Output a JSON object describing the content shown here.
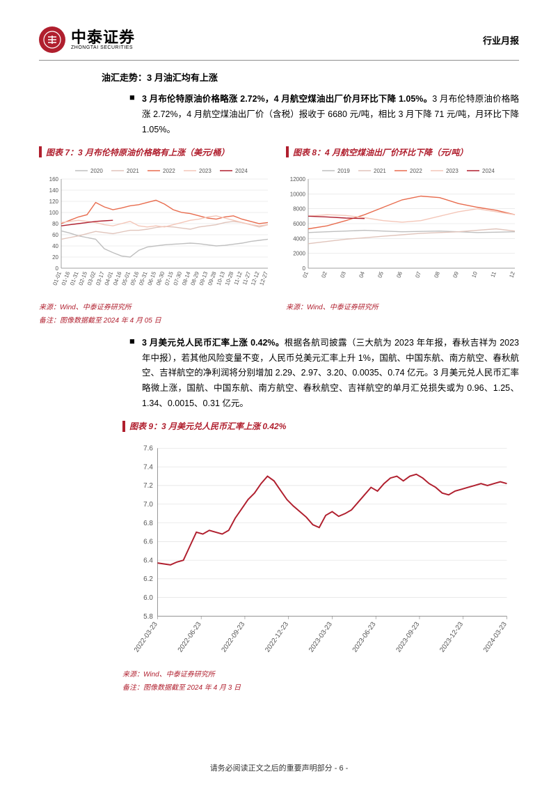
{
  "header": {
    "logo_cn": "中泰证券",
    "logo_en": "ZHONGTAI SECURITIES",
    "right_label": "行业月报"
  },
  "section_title": "油汇走势：3 月油汇均有上涨",
  "bullet1": {
    "bold": "3 月布伦特原油价格略涨 2.72%，4 月航空煤油出厂价月环比下降 1.05%。",
    "rest": "3 月布伦特原油价格略涨 2.72%，4 月航空煤油出厂价（含税）报收于 6680 元/吨，相比 3 月下降 71 元/吨，月环比下降 1.05%。"
  },
  "chart7": {
    "title": "图表 7：3 月布伦特原油价格略有上涨（美元/桶）",
    "type": "line",
    "legend": [
      "2020",
      "2021",
      "2022",
      "2023",
      "2024"
    ],
    "legend_colors": [
      "#bfbfbf",
      "#e0c4bb",
      "#e86c4e",
      "#f4c6b8",
      "#b01f2e"
    ],
    "y_min": 0,
    "y_max": 160,
    "y_step": 20,
    "x_labels": [
      "01-01",
      "01-16",
      "01-31",
      "02-15",
      "03-02",
      "03-17",
      "04-01",
      "04-16",
      "05-01",
      "05-16",
      "05-31",
      "06-15",
      "06-30",
      "07-15",
      "07-30",
      "08-14",
      "08-29",
      "09-13",
      "09-28",
      "10-13",
      "10-28",
      "11-12",
      "11-27",
      "12-12",
      "12-27"
    ],
    "series": {
      "2020": [
        67,
        63,
        58,
        55,
        52,
        35,
        28,
        22,
        20,
        32,
        38,
        40,
        42,
        43,
        44,
        45,
        44,
        42,
        40,
        41,
        43,
        45,
        48,
        50,
        52
      ],
      "2021": [
        52,
        55,
        58,
        62,
        66,
        64,
        62,
        65,
        68,
        68,
        70,
        73,
        75,
        74,
        72,
        70,
        74,
        76,
        78,
        82,
        84,
        82,
        78,
        74,
        78
      ],
      "2022": [
        80,
        86,
        92,
        96,
        118,
        110,
        105,
        108,
        112,
        114,
        118,
        122,
        115,
        105,
        100,
        98,
        94,
        90,
        88,
        92,
        94,
        88,
        84,
        80,
        82
      ],
      "2023": [
        82,
        84,
        86,
        84,
        82,
        78,
        76,
        80,
        84,
        76,
        74,
        76,
        74,
        78,
        82,
        86,
        88,
        92,
        94,
        90,
        86,
        82,
        78,
        76,
        78
      ],
      "2024": [
        76,
        78,
        80,
        82,
        84,
        85,
        86,
        0,
        0,
        0,
        0,
        0,
        0,
        0,
        0,
        0,
        0,
        0,
        0,
        0,
        0,
        0,
        0,
        0,
        0
      ]
    },
    "source": "来源：Wind、中泰证券研究所",
    "note": "备注：图像数据截至 2024 年 4 月 05 日",
    "grid_color": "#d9d9d9",
    "axis_color": "#888888",
    "font_size": 8
  },
  "chart8": {
    "title": "图表 8：4 月航空煤油出厂价环比下降（元/吨）",
    "type": "line",
    "legend": [
      "2019",
      "2021",
      "2022",
      "2023",
      "2024"
    ],
    "legend_colors": [
      "#bfbfbf",
      "#e0c4bb",
      "#e86c4e",
      "#f4c6b8",
      "#b01f2e"
    ],
    "y_min": 0,
    "y_max": 12000,
    "y_step": 2000,
    "x_labels": [
      "01",
      "02",
      "03",
      "04",
      "05",
      "06",
      "07",
      "08",
      "09",
      "10",
      "11",
      "12"
    ],
    "series": {
      "2019": [
        4800,
        4900,
        5000,
        5100,
        5000,
        4900,
        4950,
        5000,
        4900,
        4800,
        4850,
        4900
      ],
      "2021": [
        3300,
        3600,
        3900,
        4100,
        4300,
        4500,
        4700,
        4800,
        4900,
        5100,
        5300,
        5000
      ],
      "2022": [
        5300,
        5700,
        6400,
        7200,
        8200,
        9200,
        9700,
        9500,
        8700,
        8200,
        7800,
        7200
      ],
      "2023": [
        7000,
        7200,
        7100,
        6800,
        6400,
        6200,
        6400,
        7000,
        7600,
        8000,
        7600,
        7200
      ],
      "2024": [
        7000,
        6900,
        6751,
        6680,
        0,
        0,
        0,
        0,
        0,
        0,
        0,
        0
      ]
    },
    "source": "来源：Wind、中泰证券研究所",
    "grid_color": "#d9d9d9",
    "axis_color": "#888888",
    "font_size": 8
  },
  "bullet2": {
    "bold": "3 月美元兑人民币汇率上涨 0.42%。",
    "rest": "根据各航司披露（三大航为 2023 年年报，春秋吉祥为 2023 年中报），若其他风险变量不变，人民币兑美元汇率上升 1%，国航、中国东航、南方航空、春秋航空、吉祥航空的净利润将分别增加 2.29、2.97、3.20、0.0035、0.74 亿元。3 月美元兑人民币汇率略微上涨，国航、中国东航、南方航空、春秋航空、吉祥航空的单月汇兑损失或为 0.96、1.25、1.34、0.0015、0.31 亿元。"
  },
  "chart9": {
    "title": "图表 9：3 月美元兑人民币汇率上涨 0.42%",
    "type": "line",
    "color": "#b01f2e",
    "y_min": 5.8,
    "y_max": 7.6,
    "y_step": 0.2,
    "x_labels": [
      "2022-03-23",
      "2022-06-23",
      "2022-09-23",
      "2022-12-23",
      "2023-03-23",
      "2023-06-23",
      "2023-09-23",
      "2023-12-23",
      "2024-03-23"
    ],
    "series": [
      6.37,
      6.36,
      6.35,
      6.38,
      6.4,
      6.55,
      6.7,
      6.68,
      6.72,
      6.7,
      6.68,
      6.72,
      6.85,
      6.95,
      7.05,
      7.12,
      7.22,
      7.3,
      7.25,
      7.15,
      7.05,
      6.98,
      6.92,
      6.86,
      6.78,
      6.75,
      6.88,
      6.92,
      6.87,
      6.9,
      6.94,
      7.02,
      7.1,
      7.18,
      7.14,
      7.22,
      7.28,
      7.3,
      7.25,
      7.3,
      7.32,
      7.28,
      7.22,
      7.18,
      7.12,
      7.1,
      7.14,
      7.16,
      7.18,
      7.2,
      7.22,
      7.2,
      7.22,
      7.24,
      7.22
    ],
    "source": "来源：Wind、中泰证券研究所",
    "note": "备注：图像数据截至 2024 年 4 月 3 日",
    "grid_color": "#d9d9d9",
    "axis_color": "#888888",
    "font_size": 9
  },
  "footer": "请务必阅读正文之后的重要声明部分 - 6 -"
}
